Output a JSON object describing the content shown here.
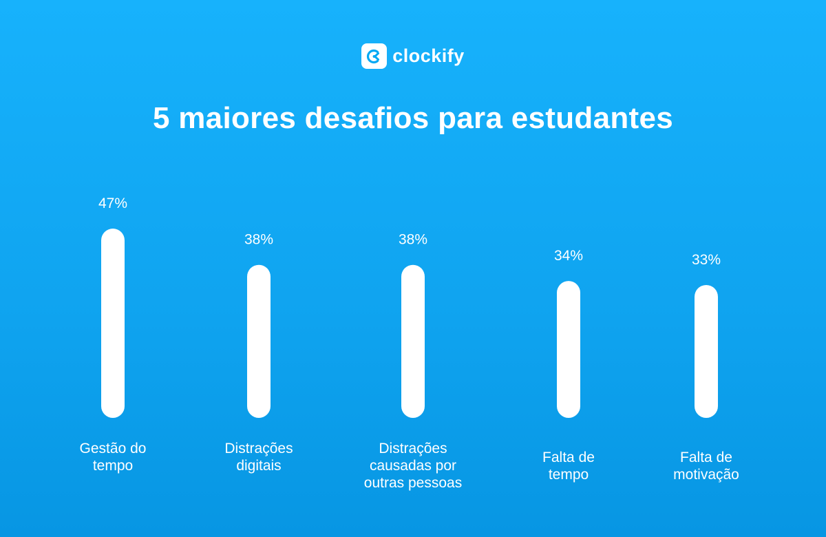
{
  "brand": {
    "name": "clockify"
  },
  "chart_data": {
    "type": "bar",
    "title": "5 maiores desafios para estudantes",
    "categories": [
      "Gestão do tempo",
      "Distrações digitais",
      "Distrações causadas por outras pessoas",
      "Falta de tempo",
      "Falta de motivação"
    ],
    "category_lines": [
      [
        "Gestão do",
        "tempo"
      ],
      [
        "Distrações",
        "digitais"
      ],
      [
        "Distrações",
        "causadas por",
        "outras pessoas"
      ],
      [
        "Falta de",
        "tempo"
      ],
      [
        "Falta de",
        "motivação"
      ]
    ],
    "values": [
      47,
      38,
      38,
      34,
      33
    ],
    "value_labels": [
      "47%",
      "38%",
      "38%",
      "34%",
      "33%"
    ],
    "unit": "%",
    "xlabel": "",
    "ylabel": "",
    "grid": false,
    "bar_color": "#ffffff"
  }
}
